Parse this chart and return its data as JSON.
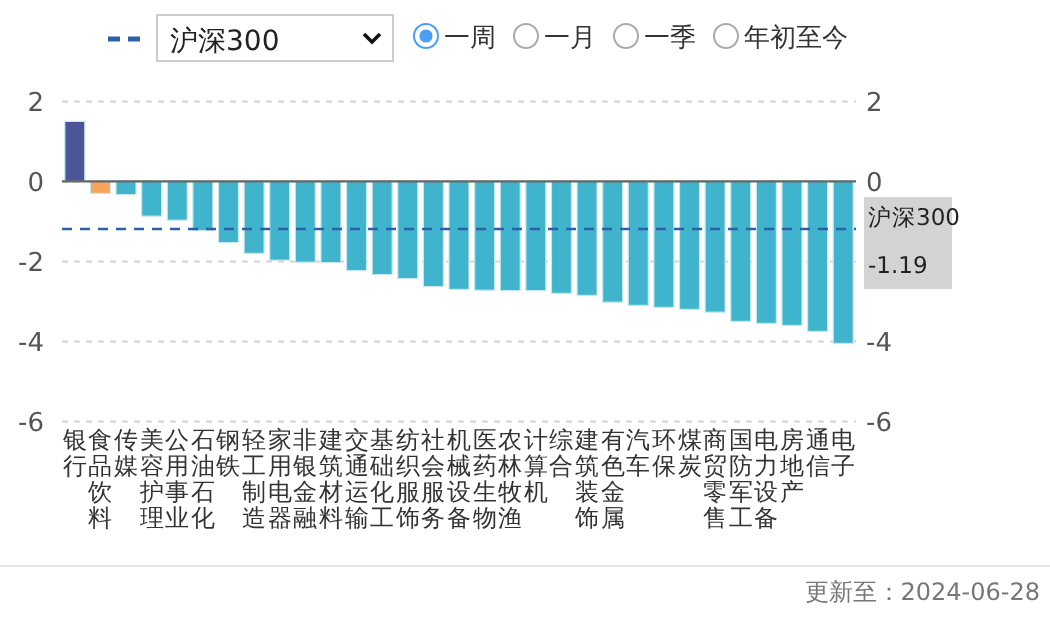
{
  "chart_data": {
    "type": "bar",
    "categories": [
      "银行",
      "食品饮料",
      "传媒",
      "美容护理",
      "公用事业",
      "石油石化",
      "钢铁",
      "轻工制造",
      "家用电器",
      "非银金融",
      "建筑材料",
      "交通运输",
      "基础化工",
      "纺织服饰",
      "社会服务",
      "机械设备",
      "医药生物",
      "农林牧渔",
      "计算机",
      "综合",
      "建筑装饰",
      "有色金属",
      "汽车",
      "环保",
      "煤炭",
      "商贸零售",
      "国防军工",
      "电力设备",
      "房地产",
      "通信",
      "电子"
    ],
    "values": [
      1.5,
      -0.3,
      -0.33,
      -0.87,
      -0.97,
      -1.23,
      -1.53,
      -1.8,
      -1.97,
      -2.02,
      -2.03,
      -2.23,
      -2.33,
      -2.43,
      -2.63,
      -2.7,
      -2.72,
      -2.73,
      -2.73,
      -2.8,
      -2.85,
      -3.02,
      -3.1,
      -3.15,
      -3.2,
      -3.27,
      -3.5,
      -3.55,
      -3.6,
      -3.75,
      -4.05
    ],
    "colors": [
      "#4b5597",
      "#f5a55a",
      "#3fb4cc",
      "#3fb4cc",
      "#3fb4cc",
      "#3fb4cc",
      "#3fb4cc",
      "#3fb4cc",
      "#3fb4cc",
      "#3fb4cc",
      "#3fb4cc",
      "#3fb4cc",
      "#3fb4cc",
      "#3fb4cc",
      "#3fb4cc",
      "#3fb4cc",
      "#3fb4cc",
      "#3fb4cc",
      "#3fb4cc",
      "#3fb4cc",
      "#3fb4cc",
      "#3fb4cc",
      "#3fb4cc",
      "#3fb4cc",
      "#3fb4cc",
      "#3fb4cc",
      "#3fb4cc",
      "#3fb4cc",
      "#3fb4cc",
      "#3fb4cc",
      "#3fb4cc"
    ],
    "ylim": [
      -6,
      2
    ],
    "yticks": [
      -6,
      -4,
      -2,
      0,
      2
    ],
    "y2lim": [
      -6,
      2
    ],
    "y2ticks": [
      -6,
      -4,
      0,
      2
    ],
    "legend_title": "沪深300",
    "grid": "y",
    "legend": "top",
    "ref_lines": [
      {
        "axis": "y",
        "value": -1.19,
        "label": "沪深300 -1.19",
        "color": "#2f5fa8",
        "line_style": "dashed"
      }
    ],
    "annotations": [
      "一周",
      "一月",
      "一季",
      "年初至今",
      "更新至：2024-06-28"
    ]
  }
}
